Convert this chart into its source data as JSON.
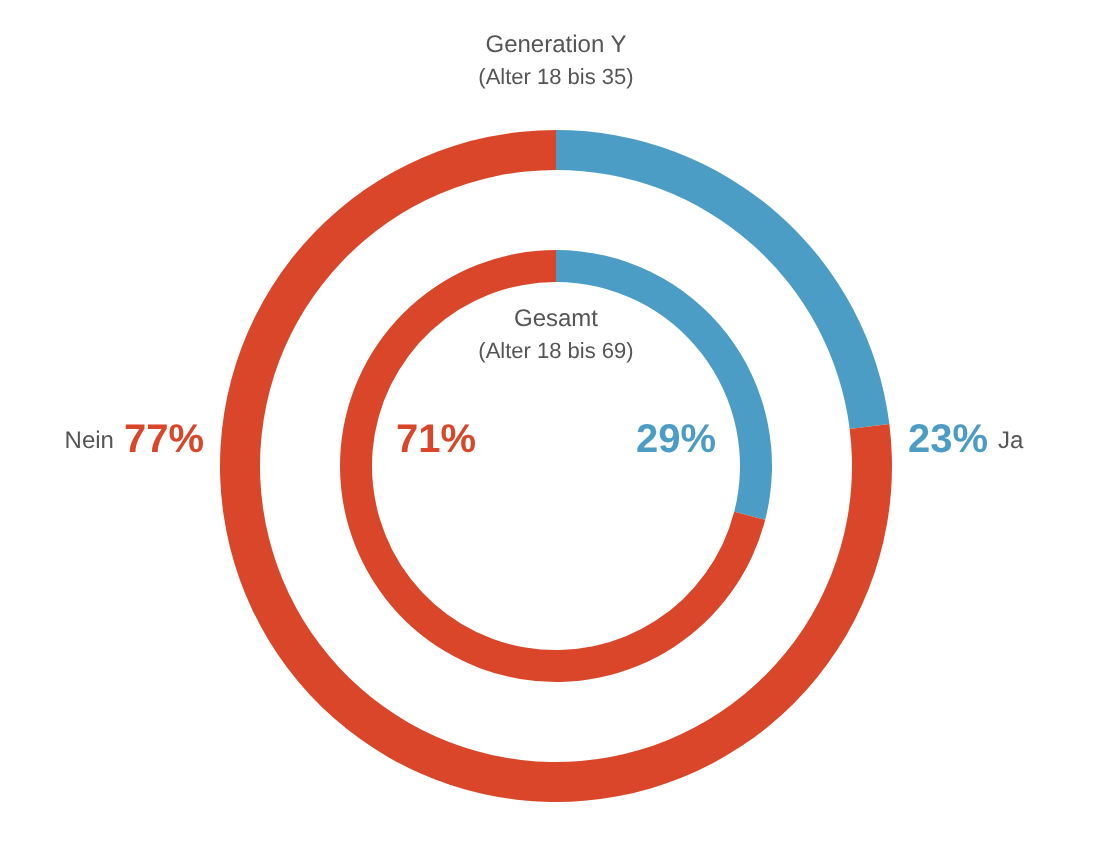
{
  "chart_data": [
    {
      "type": "donut",
      "title": "Generation Y",
      "subtitle": "(Alter 18 bis 35)",
      "categories": [
        "Ja",
        "Nein"
      ],
      "values": [
        23,
        77
      ],
      "colors": [
        "#4b9dc5",
        "#d9462a"
      ],
      "value_labels": [
        "23%",
        "77%"
      ]
    },
    {
      "type": "donut",
      "title": "Gesamt",
      "subtitle": "(Alter 18 bis 69)",
      "categories": [
        null,
        null
      ],
      "values": [
        29,
        71
      ],
      "colors": [
        "#4b9dc5",
        "#d9462a"
      ],
      "value_labels": [
        "29%",
        "71%"
      ]
    }
  ]
}
